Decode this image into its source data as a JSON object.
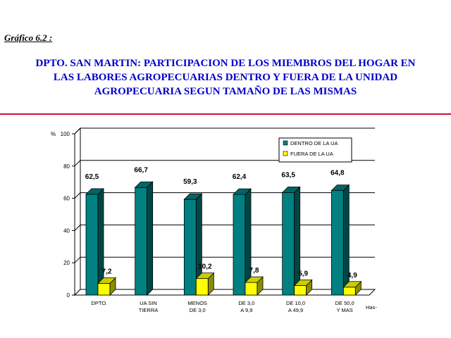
{
  "figure_label": "Gráfico 6.2 :",
  "title_lines": [
    "DPTO. SAN MARTIN: PARTICIPACION DE LOS MIEMBROS DEL HOGAR EN",
    "LAS LABORES AGROPECUARIAS DENTRO Y FUERA DE LA UNIDAD",
    "AGROPECUARIA SEGUN TAMAÑO DE LAS MISMAS"
  ],
  "colors": {
    "title": "#0000cc",
    "rule": "#d01030",
    "dentro": "#008080",
    "fuera": "#ffff00"
  },
  "chart_data": {
    "type": "bar",
    "title": "DPTO. SAN MARTIN: PARTICIPACION DE LOS MIEMBROS DEL HOGAR EN LAS LABORES AGROPECUARIAS DENTRO Y FUERA DE LA UNIDAD AGROPECUARIA SEGUN TAMAÑO DE LAS MISMAS",
    "ylabel": "%",
    "xlabel": "Has-",
    "ylim": [
      0,
      100
    ],
    "yticks": [
      "0",
      "20",
      "40",
      "60",
      "80",
      "100"
    ],
    "grid": true,
    "three_d": true,
    "legend_position": "top-right",
    "categories": [
      [
        "DPTO."
      ],
      [
        "UA SIN",
        "TIERRA"
      ],
      [
        "MENOS",
        "DE 3,0"
      ],
      [
        "DE 3,0",
        "A 9,9"
      ],
      [
        "DE 10,0",
        "A 49,9"
      ],
      [
        "DE 50,0",
        "Y MAS"
      ]
    ],
    "series": [
      {
        "name": "DENTRO DE LA UA",
        "color": "#008080",
        "values": [
          62.5,
          66.7,
          59.3,
          62.4,
          63.5,
          64.8
        ],
        "labels": [
          "62,5",
          "66,7",
          "59,3",
          "62,4",
          "63,5",
          "64,8"
        ]
      },
      {
        "name": "FUERA DE LA UA",
        "color": "#ffff00",
        "values": [
          7.2,
          null,
          10.2,
          7.8,
          5.9,
          4.9
        ],
        "labels": [
          "7,2",
          null,
          "10,2",
          "7,8",
          "5,9",
          "4,9"
        ]
      }
    ]
  }
}
